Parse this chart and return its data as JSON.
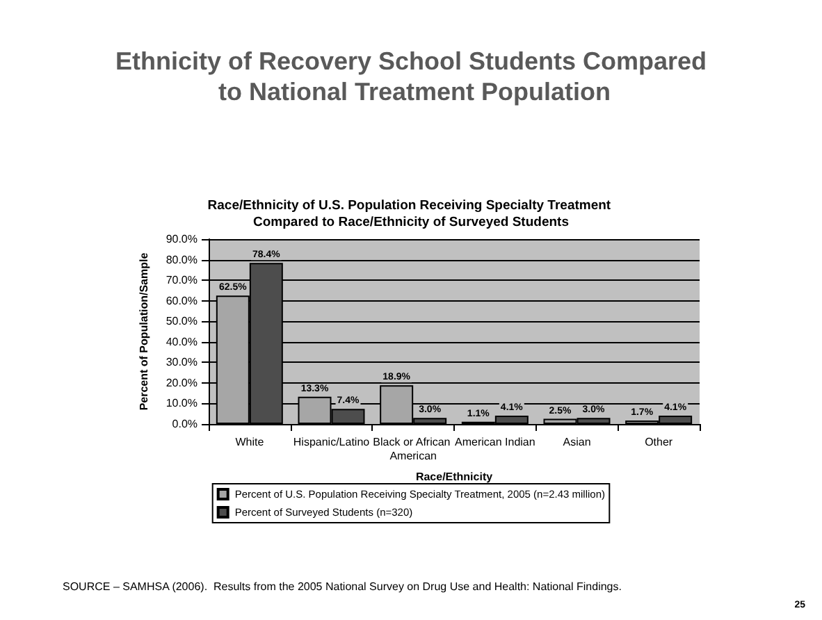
{
  "chart_data": {
    "type": "bar",
    "title": "Ethnicity of Recovery School Students Compared to National Treatment Population",
    "subtitle": "Race/Ethnicity of U.S. Population Receiving Specialty Treatment Compared to Race/Ethnicity of Surveyed Students",
    "xlabel": "Race/Ethnicity",
    "ylabel": "Percent of Population/Sample",
    "categories": [
      "White",
      "Hispanic/Latino",
      "Black or African American",
      "American Indian",
      "Asian",
      "Other"
    ],
    "series": [
      {
        "name": "Percent of U.S. Population Receiving Specialty Treatment, 2005 (n=2.43 million)",
        "color": "#a6a6a6",
        "values": [
          62.5,
          13.3,
          18.9,
          1.1,
          2.5,
          1.7
        ],
        "value_labels": [
          "62.5%",
          "13.3%",
          "18.9%",
          "1.1%",
          "2.5%",
          "1.7%"
        ]
      },
      {
        "name": "Percent of Surveyed Students (n=320)",
        "color": "#4d4d4d",
        "values": [
          78.4,
          7.4,
          3.0,
          4.1,
          3.0,
          4.1
        ],
        "value_labels": [
          "78.4%",
          "7.4%",
          "3.0%",
          "4.1%",
          "3.0%",
          "4.1%"
        ]
      }
    ],
    "ylim": [
      0,
      90
    ],
    "yticks": [
      {
        "value": 0,
        "label": "0.0%"
      },
      {
        "value": 10,
        "label": "10.0%"
      },
      {
        "value": 20,
        "label": "20.0%"
      },
      {
        "value": 30,
        "label": "30.0%"
      },
      {
        "value": 40,
        "label": "40.0%"
      },
      {
        "value": 50,
        "label": "50.0%"
      },
      {
        "value": 60,
        "label": "60.0%"
      },
      {
        "value": 70,
        "label": "70.0%"
      },
      {
        "value": 80,
        "label": "80.0%"
      },
      {
        "value": 90,
        "label": "90.0%"
      }
    ],
    "grid": "y",
    "legend": "bottom",
    "annotations": [
      "SOURCE – SAMHSA (2006).  Results from the 2005 National Survey on Drug Use and Health: National Findings.",
      "25"
    ]
  }
}
